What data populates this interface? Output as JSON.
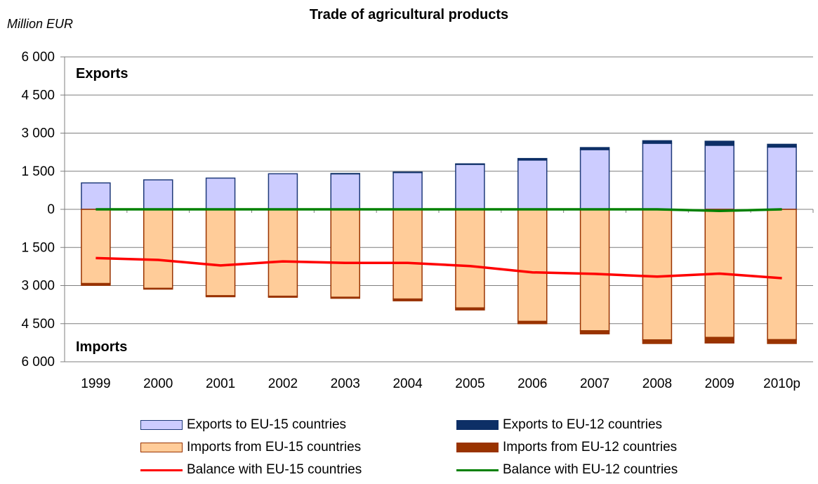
{
  "chart_data": {
    "type": "bar",
    "title": "Trade of agricultural products",
    "unit_label": "Million EUR",
    "annotations": {
      "top": "Exports",
      "bottom": "Imports"
    },
    "categories": [
      "1999",
      "2000",
      "2001",
      "2002",
      "2003",
      "2004",
      "2005",
      "2006",
      "2007",
      "2008",
      "2009",
      "2010p"
    ],
    "y_ticks": [
      {
        "value": 6000,
        "label": "6 000"
      },
      {
        "value": 4500,
        "label": "4 500"
      },
      {
        "value": 3000,
        "label": "3 000"
      },
      {
        "value": 1500,
        "label": "1 500"
      },
      {
        "value": 0,
        "label": "0"
      },
      {
        "value": -1500,
        "label": "1 500"
      },
      {
        "value": -3000,
        "label": "3 000"
      },
      {
        "value": -4500,
        "label": "4 500"
      },
      {
        "value": -6000,
        "label": "6 000"
      }
    ],
    "ylim": [
      -6000,
      6000
    ],
    "series": [
      {
        "name": "Exports to EU-15 countries",
        "kind": "bar",
        "stack": "exports",
        "color": "#ccccff",
        "border": "#1f3a7a",
        "values": [
          1040,
          1160,
          1230,
          1400,
          1400,
          1450,
          1770,
          1940,
          2350,
          2600,
          2520,
          2450
        ]
      },
      {
        "name": "Exports to EU-12 countries",
        "kind": "bar",
        "stack": "exports",
        "color": "#0d2f66",
        "border": "#0d2f66",
        "values": [
          0,
          0,
          0,
          0,
          10,
          15,
          20,
          60,
          80,
          100,
          160,
          110
        ]
      },
      {
        "name": "Imports from EU-15 countries",
        "kind": "bar",
        "stack": "imports",
        "color": "#ffcc99",
        "border": "#993300",
        "values": [
          -2920,
          -3110,
          -3400,
          -3420,
          -3460,
          -3530,
          -3880,
          -4410,
          -4780,
          -5140,
          -5040,
          -5130
        ]
      },
      {
        "name": "Imports from EU-12 countries",
        "kind": "bar",
        "stack": "imports",
        "color": "#993300",
        "border": "#993300",
        "values": [
          -70,
          -30,
          -40,
          -40,
          -40,
          -70,
          -80,
          -90,
          -120,
          -140,
          -220,
          -150
        ]
      },
      {
        "name": "Balance with EU-15 countries",
        "kind": "line",
        "color": "#ff0000",
        "values": [
          -1920,
          -1990,
          -2210,
          -2050,
          -2110,
          -2110,
          -2230,
          -2480,
          -2540,
          -2650,
          -2530,
          -2710
        ]
      },
      {
        "name": "Balance with EU-12 countries",
        "kind": "line",
        "color": "#008000",
        "values": [
          0,
          0,
          0,
          0,
          0,
          0,
          0,
          0,
          0,
          0,
          -60,
          0
        ]
      }
    ],
    "legend": {
      "position": "bottom",
      "columns": 2
    },
    "grid": {
      "horizontal": true
    }
  }
}
